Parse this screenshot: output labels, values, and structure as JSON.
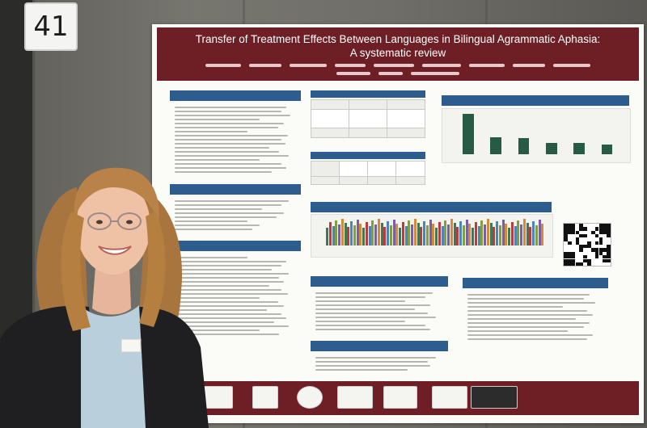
{
  "booth_number": "41",
  "poster": {
    "title": "Transfer of Treatment Effects Between Languages in Bilingual Agrammatic Aphasia:",
    "subtitle": "A systematic review"
  },
  "colors": {
    "banner": "#6d1f25",
    "section_header": "#2d5d8f",
    "bar_green": "#285b45",
    "wall": "#6e6d68"
  },
  "chart_data": {
    "type": "bar",
    "values": [
      100,
      42,
      40,
      28,
      28,
      24
    ]
  }
}
